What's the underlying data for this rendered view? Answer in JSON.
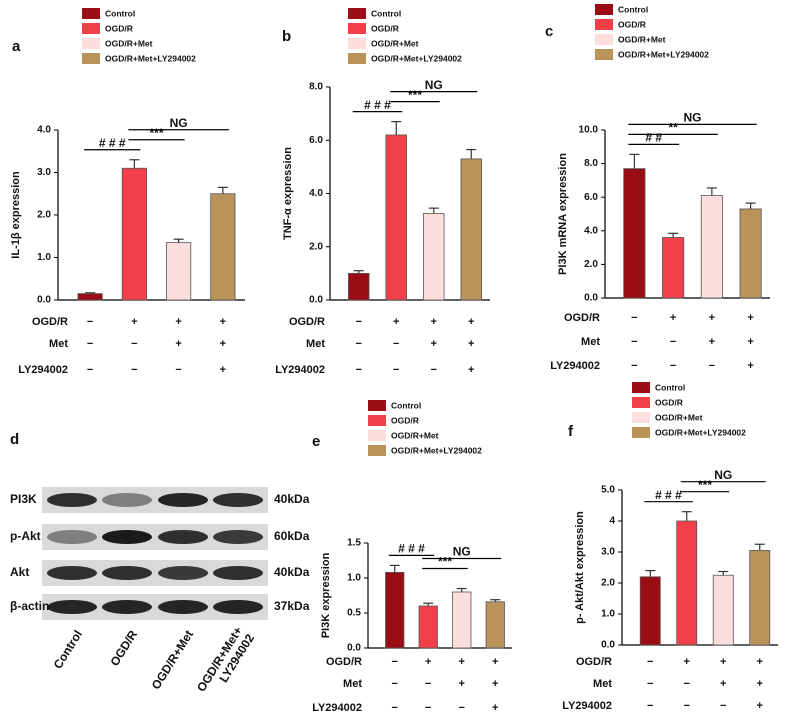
{
  "chart_data": [
    {
      "type": "bar",
      "panel": "a",
      "ylabel": "IL-1β expression",
      "ylim": [
        0,
        4
      ],
      "yticks": [
        {
          "value": 0,
          "label": "0.0"
        },
        {
          "value": 1,
          "label": "1.0"
        },
        {
          "value": 2,
          "label": "2.0"
        },
        {
          "value": 3,
          "label": "3.0"
        },
        {
          "value": 4,
          "label": "4.0"
        }
      ],
      "series": [
        {
          "name": "Control",
          "color": "#9b0d14",
          "values": [
            0.15
          ],
          "errors": [
            0.02
          ]
        },
        {
          "name": "OGD/R",
          "color": "#f2404a",
          "values": [
            3.1
          ],
          "errors": [
            0.2
          ]
        },
        {
          "name": "OGD/R+Met",
          "color": "#fcdede",
          "values": [
            1.35
          ],
          "errors": [
            0.08
          ]
        },
        {
          "name": "OGD/R+Met+LY294002",
          "color": "#b9935a",
          "values": [
            2.5
          ],
          "errors": [
            0.15
          ]
        }
      ],
      "annotations": [
        {
          "text": "# # #",
          "bars": [
            0,
            1
          ]
        },
        {
          "text": "***",
          "bars": [
            1,
            2
          ]
        },
        {
          "text": "NG",
          "bars": [
            1,
            3
          ]
        }
      ],
      "treatments": [
        {
          "name": "OGD/R",
          "signs": [
            "−",
            "+",
            "+",
            "+"
          ]
        },
        {
          "name": "Met",
          "signs": [
            "−",
            "−",
            "+",
            "+"
          ]
        },
        {
          "name": "LY294002",
          "signs": [
            "−",
            "−",
            "−",
            "+"
          ]
        }
      ]
    },
    {
      "type": "bar",
      "panel": "b",
      "ylabel": "TNF-α expression",
      "ylim": [
        0,
        8
      ],
      "yticks": [
        {
          "value": 0,
          "label": "0.0"
        },
        {
          "value": 2,
          "label": "2.0"
        },
        {
          "value": 4,
          "label": "4.0"
        },
        {
          "value": 6,
          "label": "6.0"
        },
        {
          "value": 8,
          "label": "8.0"
        }
      ],
      "series": [
        {
          "name": "Control",
          "color": "#9b0d14",
          "values": [
            1.0
          ],
          "errors": [
            0.1
          ]
        },
        {
          "name": "OGD/R",
          "color": "#f2404a",
          "values": [
            6.2
          ],
          "errors": [
            0.5
          ]
        },
        {
          "name": "OGD/R+Met",
          "color": "#fcdede",
          "values": [
            3.25
          ],
          "errors": [
            0.2
          ]
        },
        {
          "name": "OGD/R+Met+LY294002",
          "color": "#b9935a",
          "values": [
            5.3
          ],
          "errors": [
            0.35
          ]
        }
      ],
      "annotations": [
        {
          "text": "# # #",
          "bars": [
            0,
            1
          ]
        },
        {
          "text": "***",
          "bars": [
            1,
            2
          ]
        },
        {
          "text": "NG",
          "bars": [
            1,
            3
          ]
        }
      ],
      "treatments": [
        {
          "name": "OGD/R",
          "signs": [
            "−",
            "+",
            "+",
            "+"
          ]
        },
        {
          "name": "Met",
          "signs": [
            "−",
            "−",
            "+",
            "+"
          ]
        },
        {
          "name": "LY294002",
          "signs": [
            "−",
            "−",
            "−",
            "+"
          ]
        }
      ]
    },
    {
      "type": "bar",
      "panel": "c",
      "ylabel": "PI3K mRNA expression",
      "ylim": [
        0,
        10
      ],
      "yticks": [
        {
          "value": 0,
          "label": "0.0"
        },
        {
          "value": 2,
          "label": "2.0"
        },
        {
          "value": 4,
          "label": "4.0"
        },
        {
          "value": 6,
          "label": "6.0"
        },
        {
          "value": 8,
          "label": "8.0"
        },
        {
          "value": 10,
          "label": "10.0"
        }
      ],
      "series": [
        {
          "name": "Control",
          "color": "#9b0d14",
          "values": [
            7.7
          ],
          "errors": [
            0.85
          ]
        },
        {
          "name": "OGD/R",
          "color": "#f2404a",
          "values": [
            3.6
          ],
          "errors": [
            0.25
          ]
        },
        {
          "name": "OGD/R+Met",
          "color": "#fcdede",
          "values": [
            6.1
          ],
          "errors": [
            0.45
          ]
        },
        {
          "name": "OGD/R+Met+LY294002",
          "color": "#b9935a",
          "values": [
            5.3
          ],
          "errors": [
            0.35
          ]
        }
      ],
      "annotations": [
        {
          "text": "# #",
          "bars": [
            0,
            1
          ]
        },
        {
          "text": "**",
          "bars": [
            0,
            2
          ]
        },
        {
          "text": "NG",
          "bars": [
            0,
            3
          ]
        }
      ],
      "treatments": [
        {
          "name": "OGD/R",
          "signs": [
            "−",
            "+",
            "+",
            "+"
          ]
        },
        {
          "name": "Met",
          "signs": [
            "−",
            "−",
            "+",
            "+"
          ]
        },
        {
          "name": "LY294002",
          "signs": [
            "−",
            "−",
            "−",
            "+"
          ]
        }
      ]
    },
    {
      "type": "bar",
      "panel": "e",
      "ylabel": "PI3K expression",
      "ylim": [
        0,
        1.5
      ],
      "yticks": [
        {
          "value": 0,
          "label": "0.0"
        },
        0.5,
        {
          "value": 1,
          "label": "1.0"
        },
        1.5
      ],
      "series": [
        {
          "name": "Control",
          "color": "#9b0d14",
          "values": [
            1.08
          ],
          "errors": [
            0.1
          ]
        },
        {
          "name": "OGD/R",
          "color": "#f2404a",
          "values": [
            0.6
          ],
          "errors": [
            0.04
          ]
        },
        {
          "name": "OGD/R+Met",
          "color": "#fcdede",
          "values": [
            0.8
          ],
          "errors": [
            0.05
          ]
        },
        {
          "name": "OGD/R+Met+LY294002",
          "color": "#b9935a",
          "values": [
            0.66
          ],
          "errors": [
            0.03
          ]
        }
      ],
      "annotations": [
        {
          "text": "# # #",
          "bars": [
            0,
            1
          ]
        },
        {
          "text": "***",
          "bars": [
            1,
            2
          ]
        },
        {
          "text": "NG",
          "bars": [
            1,
            3
          ]
        }
      ],
      "treatments": [
        {
          "name": "OGD/R",
          "signs": [
            "−",
            "+",
            "+",
            "+"
          ]
        },
        {
          "name": "Met",
          "signs": [
            "−",
            "−",
            "+",
            "+"
          ]
        },
        {
          "name": "LY294002",
          "signs": [
            "−",
            "−",
            "−",
            "+"
          ]
        }
      ]
    },
    {
      "type": "bar",
      "panel": "f",
      "ylabel": "p- Akt/Akt expression",
      "ylim": [
        0,
        5
      ],
      "yticks": [
        {
          "value": 0,
          "label": "0.0"
        },
        {
          "value": 1,
          "label": "1.0"
        },
        {
          "value": 2,
          "label": "2.0"
        },
        {
          "value": 3,
          "label": "3.0"
        },
        4,
        {
          "value": 5,
          "label": "5.0"
        }
      ],
      "series": [
        {
          "name": "Control",
          "color": "#9b0d14",
          "values": [
            2.2
          ],
          "errors": [
            0.2
          ]
        },
        {
          "name": "OGD/R",
          "color": "#f2404a",
          "values": [
            4.0
          ],
          "errors": [
            0.3
          ]
        },
        {
          "name": "OGD/R+Met",
          "color": "#fcdede",
          "values": [
            2.25
          ],
          "errors": [
            0.12
          ]
        },
        {
          "name": "OGD/R+Met+LY294002",
          "color": "#b9935a",
          "values": [
            3.05
          ],
          "errors": [
            0.2
          ]
        }
      ],
      "annotations": [
        {
          "text": "# # #",
          "bars": [
            0,
            1
          ]
        },
        {
          "text": "***",
          "bars": [
            1,
            2
          ]
        },
        {
          "text": "NG",
          "bars": [
            1,
            3
          ]
        }
      ],
      "treatments": [
        {
          "name": "OGD/R",
          "signs": [
            "−",
            "+",
            "+",
            "+"
          ]
        },
        {
          "name": "Met",
          "signs": [
            "−",
            "−",
            "+",
            "+"
          ]
        },
        {
          "name": "LY294002",
          "signs": [
            "−",
            "−",
            "−",
            "+"
          ]
        }
      ]
    }
  ],
  "blot": {
    "panel": "d",
    "proteins": [
      "PI3K",
      "p-Akt",
      "Akt",
      "β-actin"
    ],
    "sizes": [
      "40kDa",
      "60kDa",
      "40kDa",
      "37kDa"
    ],
    "lanes": [
      [
        "Control"
      ],
      [
        "OGD/R"
      ],
      [
        "OGD/R+Met"
      ],
      [
        "OGD/R+Met+",
        "LY294002"
      ]
    ]
  }
}
